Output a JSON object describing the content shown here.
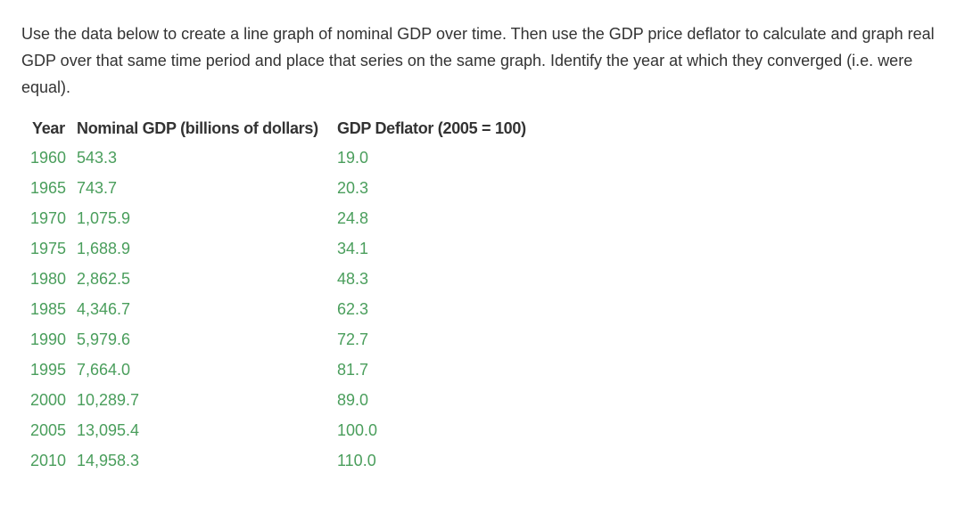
{
  "prompt_text": "Use the data below to create a line graph of nominal GDP over time. Then use the GDP price deflator to calculate and graph real GDP over that same time period and place that series on the same graph. Identify the year at which they converged (i.e. were equal).",
  "table": {
    "headers": {
      "year": "Year",
      "nominal": "Nominal GDP (billions of dollars)",
      "deflator": "GDP Deflator (2005 = 100)"
    },
    "rows": [
      {
        "year": "1960",
        "nominal": "543.3",
        "deflator": "19.0"
      },
      {
        "year": "1965",
        "nominal": "743.7",
        "deflator": "20.3"
      },
      {
        "year": "1970",
        "nominal": "1,075.9",
        "deflator": "24.8"
      },
      {
        "year": "1975",
        "nominal": "1,688.9",
        "deflator": "34.1"
      },
      {
        "year": "1980",
        "nominal": "2,862.5",
        "deflator": "48.3"
      },
      {
        "year": "1985",
        "nominal": "4,346.7",
        "deflator": "62.3"
      },
      {
        "year": "1990",
        "nominal": "5,979.6",
        "deflator": "72.7"
      },
      {
        "year": "1995",
        "nominal": "7,664.0",
        "deflator": "81.7"
      },
      {
        "year": "2000",
        "nominal": "10,289.7",
        "deflator": "89.0"
      },
      {
        "year": "2005",
        "nominal": "13,095.4",
        "deflator": "100.0"
      },
      {
        "year": "2010",
        "nominal": "14,958.3",
        "deflator": "110.0"
      }
    ]
  },
  "colors": {
    "text": "#333333",
    "data_green": "#4a9e5c"
  }
}
